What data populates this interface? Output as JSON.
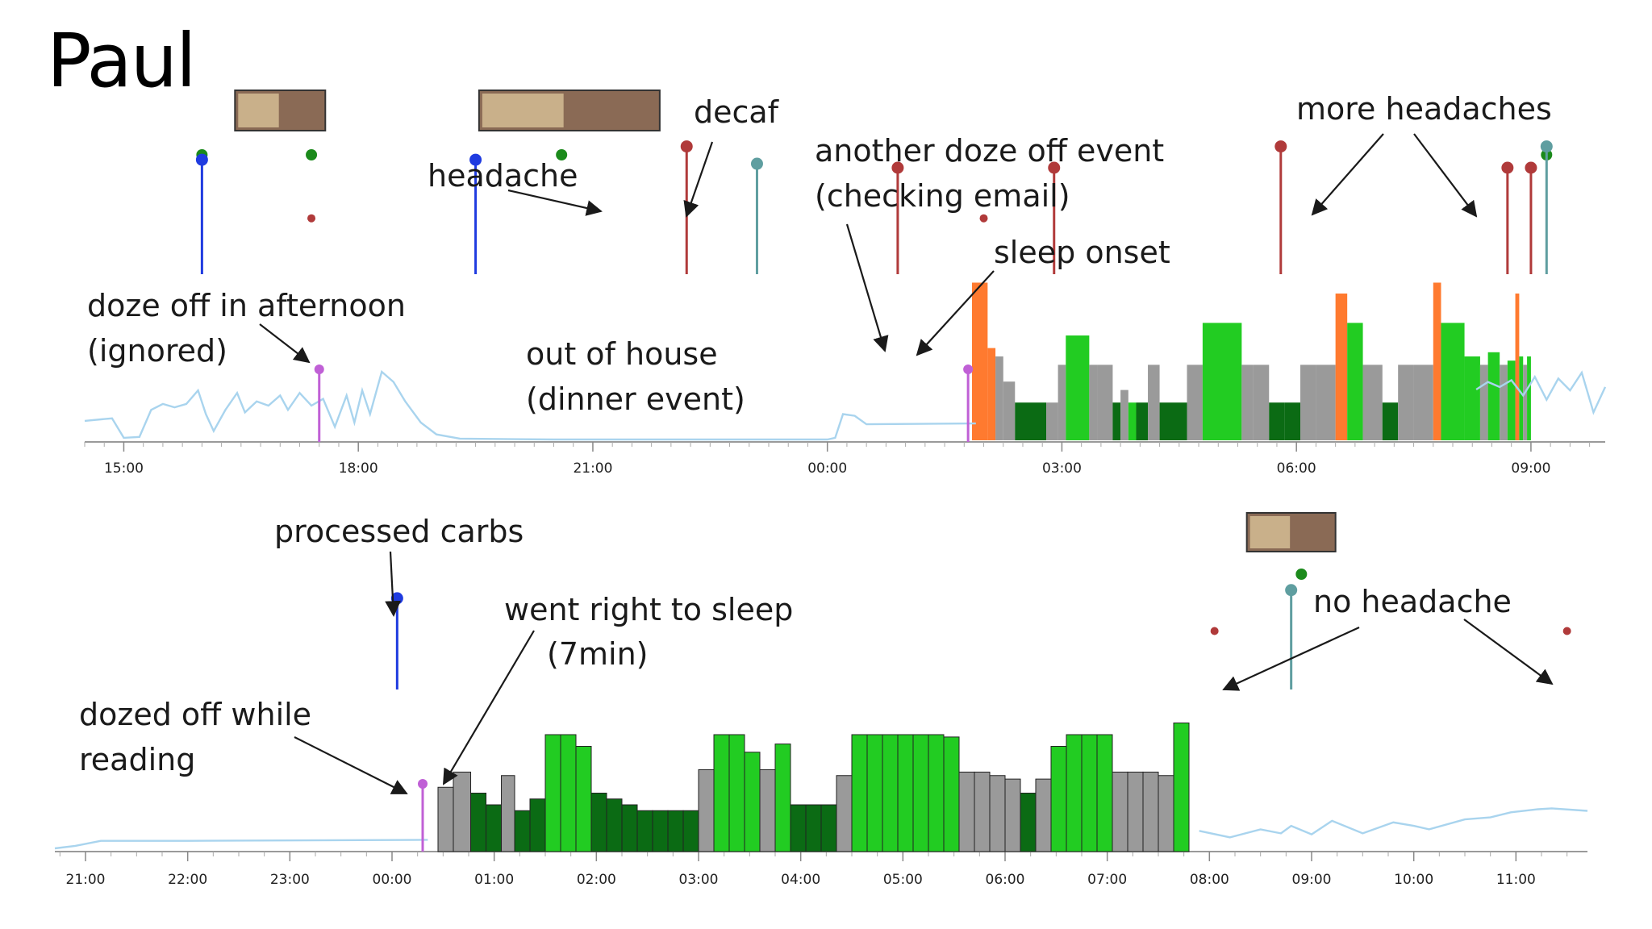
{
  "title": "Paul",
  "colors": {
    "glucose": "#a9d4ee",
    "awake": "#ff7a2f",
    "light_sleep": "#9a9a9a",
    "rem": "#22cc22",
    "deep": "#0b6b14",
    "carbs": "#1f3be0",
    "headache": "#b03a3a",
    "caffeine": "#5f9ea0",
    "doze": "#c060d6",
    "food_dot": "#1b8a1b"
  },
  "chart_data": [
    {
      "type": "timeline",
      "panel": "top",
      "title": "",
      "xlabel": "",
      "ylabel": "",
      "x_ticks": [
        "15:00",
        "18:00",
        "21:00",
        "00:00",
        "03:00",
        "06:00",
        "09:00"
      ],
      "x_range_hours": [
        14.5,
        33.95
      ],
      "food_photos_h": [
        17.0,
        20.7
      ],
      "food_dots_h": [
        16.0,
        17.4,
        20.6,
        33.2
      ],
      "events": [
        {
          "kind": "carbs",
          "t": 16.0,
          "level": 0.86
        },
        {
          "kind": "carbs",
          "t": 19.5,
          "level": 0.86
        },
        {
          "kind": "headache",
          "t": 17.4,
          "level": 0.42,
          "stem": false
        },
        {
          "kind": "headache",
          "t": 22.2,
          "level": 0.96
        },
        {
          "kind": "caffeine",
          "t": 23.1,
          "level": 0.83
        },
        {
          "kind": "headache",
          "t": 24.9,
          "level": 0.8
        },
        {
          "kind": "headache",
          "t": 26.0,
          "level": 0.42,
          "stem": false
        },
        {
          "kind": "headache",
          "t": 26.9,
          "level": 0.8
        },
        {
          "kind": "headache",
          "t": 29.8,
          "level": 0.96
        },
        {
          "kind": "headache",
          "t": 32.7,
          "level": 0.8
        },
        {
          "kind": "headache",
          "t": 33.0,
          "level": 0.8
        },
        {
          "kind": "caffeine",
          "t": 33.2,
          "level": 0.96
        }
      ],
      "doze_markers_h": [
        17.5,
        25.8
      ],
      "glucose": [
        [
          14.5,
          0.22
        ],
        [
          14.85,
          0.25
        ],
        [
          15.0,
          0.02
        ],
        [
          15.2,
          0.03
        ],
        [
          15.35,
          0.35
        ],
        [
          15.5,
          0.42
        ],
        [
          15.65,
          0.38
        ],
        [
          15.8,
          0.42
        ],
        [
          15.95,
          0.58
        ],
        [
          16.05,
          0.3
        ],
        [
          16.15,
          0.1
        ],
        [
          16.3,
          0.35
        ],
        [
          16.45,
          0.55
        ],
        [
          16.55,
          0.32
        ],
        [
          16.7,
          0.45
        ],
        [
          16.85,
          0.4
        ],
        [
          17.0,
          0.52
        ],
        [
          17.1,
          0.35
        ],
        [
          17.25,
          0.55
        ],
        [
          17.4,
          0.4
        ],
        [
          17.55,
          0.48
        ],
        [
          17.7,
          0.15
        ],
        [
          17.85,
          0.52
        ],
        [
          17.95,
          0.2
        ],
        [
          18.05,
          0.58
        ],
        [
          18.15,
          0.3
        ],
        [
          18.3,
          0.8
        ],
        [
          18.45,
          0.68
        ],
        [
          18.6,
          0.45
        ],
        [
          18.8,
          0.2
        ],
        [
          19.0,
          0.06
        ],
        [
          19.3,
          0.01
        ],
        [
          20.5,
          0.0
        ],
        [
          23.5,
          0.0
        ],
        [
          24.0,
          0.0
        ],
        [
          24.1,
          0.02
        ],
        [
          24.2,
          0.3
        ],
        [
          24.35,
          0.28
        ],
        [
          24.5,
          0.18
        ],
        [
          25.9,
          0.19
        ],
        [
          32.3,
          0.59
        ],
        [
          32.45,
          0.68
        ],
        [
          32.6,
          0.62
        ],
        [
          32.75,
          0.7
        ],
        [
          32.9,
          0.52
        ],
        [
          33.05,
          0.74
        ],
        [
          33.2,
          0.47
        ],
        [
          33.35,
          0.72
        ],
        [
          33.5,
          0.58
        ],
        [
          33.65,
          0.79
        ],
        [
          33.8,
          0.32
        ],
        [
          33.95,
          0.62
        ]
      ],
      "sleep": [
        [
          25.85,
          26.05,
          "awake",
          1.88
        ],
        [
          26.05,
          26.15,
          "awake",
          1.1
        ],
        [
          26.15,
          26.25,
          "light",
          1.0
        ],
        [
          26.25,
          26.4,
          "light",
          0.7
        ],
        [
          26.4,
          26.8,
          "deep",
          0.45
        ],
        [
          26.8,
          26.95,
          "light",
          0.45
        ],
        [
          26.95,
          27.05,
          "light",
          0.9
        ],
        [
          27.05,
          27.35,
          "rem",
          1.25
        ],
        [
          27.35,
          27.45,
          "light",
          0.9
        ],
        [
          27.45,
          27.65,
          "light",
          0.9
        ],
        [
          27.65,
          27.75,
          "deep",
          0.45
        ],
        [
          27.75,
          27.85,
          "light",
          0.6
        ],
        [
          27.85,
          27.95,
          "rem",
          0.45
        ],
        [
          27.95,
          28.1,
          "deep",
          0.45
        ],
        [
          28.1,
          28.25,
          "light",
          0.9
        ],
        [
          28.25,
          28.6,
          "deep",
          0.45
        ],
        [
          28.6,
          28.8,
          "light",
          0.9
        ],
        [
          28.8,
          29.3,
          "rem",
          1.4
        ],
        [
          29.3,
          29.45,
          "light",
          0.9
        ],
        [
          29.45,
          29.65,
          "light",
          0.9
        ],
        [
          29.65,
          29.85,
          "deep",
          0.45
        ],
        [
          29.85,
          30.05,
          "deep",
          0.45
        ],
        [
          30.05,
          30.25,
          "light",
          0.9
        ],
        [
          30.25,
          30.5,
          "light",
          0.9
        ],
        [
          30.5,
          30.65,
          "awake",
          1.75
        ],
        [
          30.65,
          30.85,
          "rem",
          1.4
        ],
        [
          30.85,
          31.1,
          "light",
          0.9
        ],
        [
          31.1,
          31.3,
          "deep",
          0.45
        ],
        [
          31.3,
          31.5,
          "light",
          0.9
        ],
        [
          31.5,
          31.75,
          "light",
          0.9
        ],
        [
          31.75,
          31.85,
          "awake",
          1.88
        ],
        [
          31.85,
          32.15,
          "rem",
          1.4
        ],
        [
          32.15,
          32.35,
          "rem",
          1.0
        ],
        [
          32.35,
          32.45,
          "light",
          0.9
        ],
        [
          32.45,
          32.6,
          "rem",
          1.05
        ],
        [
          32.6,
          32.7,
          "light",
          0.9
        ],
        [
          32.7,
          32.8,
          "rem",
          0.95
        ],
        [
          32.8,
          32.85,
          "awake",
          1.75
        ],
        [
          32.85,
          32.9,
          "rem",
          1.0
        ],
        [
          32.9,
          32.95,
          "light",
          0.9
        ],
        [
          32.95,
          33.0,
          "rem",
          1.0
        ]
      ]
    },
    {
      "type": "timeline",
      "panel": "bottom",
      "title": "",
      "xlabel": "",
      "ylabel": "",
      "x_ticks": [
        "21:00",
        "22:00",
        "23:00",
        "00:00",
        "01:00",
        "02:00",
        "03:00",
        "04:00",
        "05:00",
        "06:00",
        "07:00",
        "08:00",
        "09:00",
        "10:00",
        "11:00"
      ],
      "x_range_hours": [
        20.7,
        35.7
      ],
      "food_photos_h": [
        32.8
      ],
      "food_dots_h": [
        32.9
      ],
      "events": [
        {
          "kind": "carbs",
          "t": 24.05,
          "level": 0.78
        },
        {
          "kind": "caffeine",
          "t": 32.8,
          "level": 0.85
        },
        {
          "kind": "headache",
          "t": 32.05,
          "level": 0.5,
          "stem": false
        },
        {
          "kind": "headache",
          "t": 35.5,
          "level": 0.5,
          "stem": false
        }
      ],
      "doze_markers_h": [
        24.3
      ],
      "glucose": [
        [
          20.7,
          0.0
        ],
        [
          20.9,
          0.05
        ],
        [
          21.15,
          0.15
        ],
        [
          22.0,
          0.15
        ],
        [
          24.35,
          0.17
        ],
        [
          31.9,
          0.35
        ],
        [
          32.2,
          0.22
        ],
        [
          32.5,
          0.38
        ],
        [
          32.7,
          0.3
        ],
        [
          32.8,
          0.45
        ],
        [
          33.0,
          0.28
        ],
        [
          33.2,
          0.55
        ],
        [
          33.5,
          0.3
        ],
        [
          33.8,
          0.52
        ],
        [
          34.0,
          0.45
        ],
        [
          34.15,
          0.38
        ],
        [
          34.5,
          0.58
        ],
        [
          34.75,
          0.62
        ],
        [
          34.95,
          0.72
        ],
        [
          35.2,
          0.78
        ],
        [
          35.35,
          0.8
        ],
        [
          35.7,
          0.75
        ]
      ],
      "sleep": [
        [
          24.45,
          24.6,
          "light",
          0.55
        ],
        [
          24.6,
          24.77,
          "light",
          0.68
        ],
        [
          24.77,
          24.92,
          "deep",
          0.5
        ],
        [
          24.92,
          25.07,
          "deep",
          0.4
        ],
        [
          25.07,
          25.2,
          "light",
          0.65
        ],
        [
          25.2,
          25.35,
          "deep",
          0.35
        ],
        [
          25.35,
          25.5,
          "deep",
          0.45
        ],
        [
          25.5,
          25.65,
          "rem",
          1.0
        ],
        [
          25.65,
          25.8,
          "rem",
          1.0
        ],
        [
          25.8,
          25.95,
          "rem",
          0.9
        ],
        [
          25.95,
          26.1,
          "deep",
          0.5
        ],
        [
          26.1,
          26.25,
          "deep",
          0.45
        ],
        [
          26.25,
          26.4,
          "deep",
          0.4
        ],
        [
          26.4,
          26.55,
          "deep",
          0.35
        ],
        [
          26.55,
          26.7,
          "deep",
          0.35
        ],
        [
          26.7,
          26.85,
          "deep",
          0.35
        ],
        [
          26.85,
          27.0,
          "deep",
          0.35
        ],
        [
          27.0,
          27.15,
          "light",
          0.7
        ],
        [
          27.15,
          27.3,
          "rem",
          1.0
        ],
        [
          27.3,
          27.45,
          "rem",
          1.0
        ],
        [
          27.45,
          27.6,
          "rem",
          0.85
        ],
        [
          27.6,
          27.75,
          "light",
          0.7
        ],
        [
          27.75,
          27.9,
          "rem",
          0.92
        ],
        [
          27.9,
          28.05,
          "deep",
          0.4
        ],
        [
          28.05,
          28.2,
          "deep",
          0.4
        ],
        [
          28.2,
          28.35,
          "deep",
          0.4
        ],
        [
          28.35,
          28.5,
          "light",
          0.65
        ],
        [
          28.5,
          28.65,
          "rem",
          1.0
        ],
        [
          28.65,
          28.8,
          "rem",
          1.0
        ],
        [
          28.8,
          28.95,
          "rem",
          1.0
        ],
        [
          28.95,
          29.1,
          "rem",
          1.0
        ],
        [
          29.1,
          29.25,
          "rem",
          1.0
        ],
        [
          29.25,
          29.4,
          "rem",
          1.0
        ],
        [
          29.4,
          29.55,
          "rem",
          0.98
        ],
        [
          29.55,
          29.7,
          "light",
          0.68
        ],
        [
          29.7,
          29.85,
          "light",
          0.68
        ],
        [
          29.85,
          30.0,
          "light",
          0.65
        ],
        [
          30.0,
          30.15,
          "light",
          0.62
        ],
        [
          30.15,
          30.3,
          "deep",
          0.5
        ],
        [
          30.3,
          30.45,
          "light",
          0.62
        ],
        [
          30.45,
          30.6,
          "rem",
          0.9
        ],
        [
          30.6,
          30.75,
          "rem",
          1.0
        ],
        [
          30.75,
          30.9,
          "rem",
          1.0
        ],
        [
          30.9,
          31.05,
          "rem",
          1.0
        ],
        [
          31.05,
          31.2,
          "light",
          0.68
        ],
        [
          31.2,
          31.35,
          "light",
          0.68
        ],
        [
          31.35,
          31.5,
          "light",
          0.68
        ],
        [
          31.5,
          31.65,
          "light",
          0.65
        ],
        [
          31.65,
          31.8,
          "rem",
          1.1
        ]
      ]
    }
  ],
  "annotations": {
    "top": [
      {
        "id": "headache",
        "text": "headache"
      },
      {
        "id": "decaf",
        "text": "decaf"
      },
      {
        "id": "another-doze",
        "lines": [
          "another doze off event",
          "(checking email)"
        ]
      },
      {
        "id": "sleep-onset",
        "text": "sleep onset"
      },
      {
        "id": "more-headaches",
        "text": "more headaches"
      },
      {
        "id": "doze-afternoon",
        "lines": [
          "doze off in afternoon",
          "(ignored)"
        ]
      },
      {
        "id": "out-of-house",
        "lines": [
          "out of house",
          "(dinner event)"
        ]
      }
    ],
    "bottom": [
      {
        "id": "processed-carbs",
        "text": "processed carbs"
      },
      {
        "id": "went-right",
        "lines": [
          "went right to sleep",
          "(7min)"
        ]
      },
      {
        "id": "no-headache",
        "text": "no headache"
      },
      {
        "id": "dozed-reading",
        "lines": [
          "dozed off while",
          "reading"
        ]
      }
    ]
  }
}
